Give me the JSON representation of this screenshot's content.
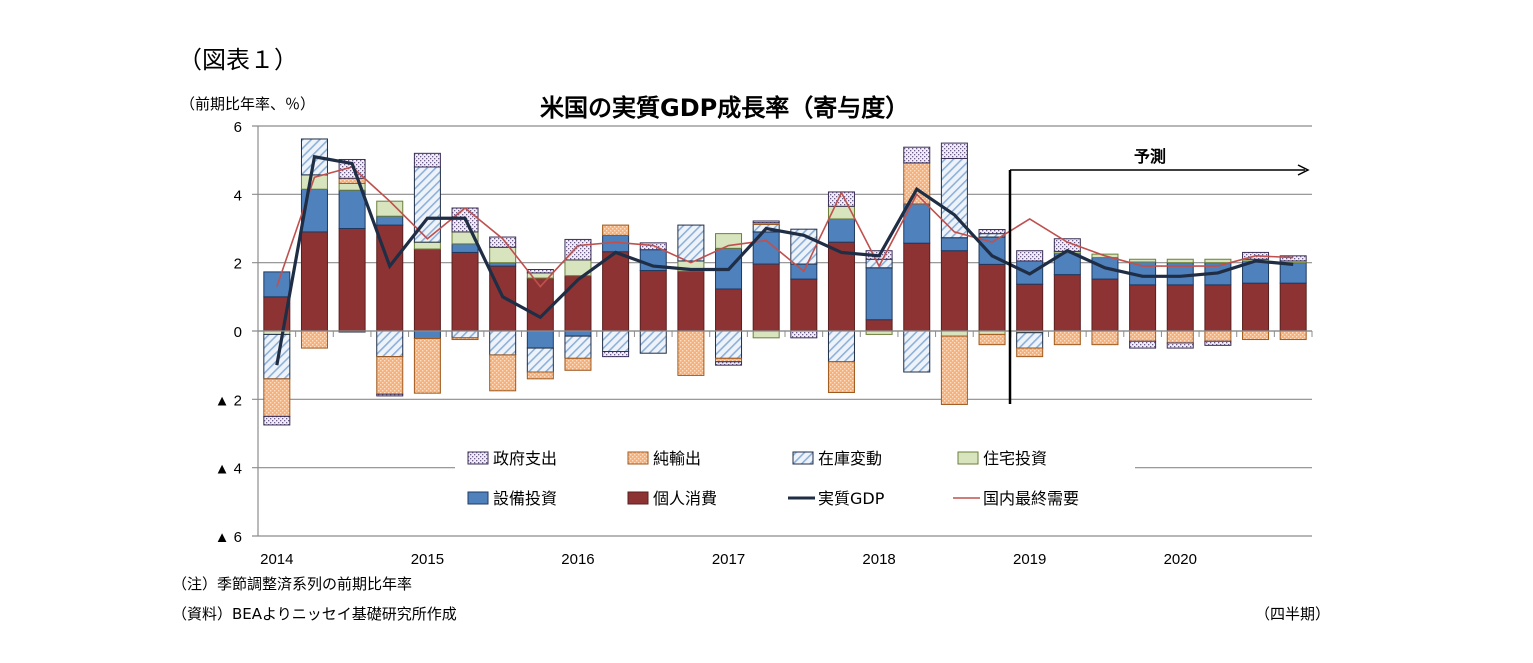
{
  "figure_label": "（図表１）",
  "unit_label": "（前期比年率、％）",
  "note": "（注）季節調整済系列の前期比年率",
  "source": "（資料）BEAよりニッセイ基礎研究所作成",
  "x_unit": "（四半期）",
  "forecast_label": "予測",
  "chart_data": {
    "type": "bar",
    "stacked": true,
    "title": "米国の実質GDP成長率（寄与度）",
    "ylabel": "（前期比年率、％）",
    "xlabel": "（四半期）",
    "ylim": [
      -6,
      6
    ],
    "yticks": [
      6,
      4,
      2,
      0,
      -2,
      -4,
      -6
    ],
    "ytick_labels": [
      "6",
      "4",
      "2",
      "0",
      "▲ 2",
      "▲ 4",
      "▲ 6"
    ],
    "grid": true,
    "legend_position": "bottom-inside",
    "forecast_start_index": 20,
    "categories": [
      "2014Q1",
      "2014Q2",
      "2014Q3",
      "2014Q4",
      "2015Q1",
      "2015Q2",
      "2015Q3",
      "2015Q4",
      "2016Q1",
      "2016Q2",
      "2016Q3",
      "2016Q4",
      "2017Q1",
      "2017Q2",
      "2017Q3",
      "2017Q4",
      "2018Q1",
      "2018Q2",
      "2018Q3",
      "2018Q4",
      "2019Q1",
      "2019Q2",
      "2019Q3",
      "2019Q4",
      "2020Q1",
      "2020Q2",
      "2020Q3",
      "2020Q4"
    ],
    "year_labels": [
      {
        "label": "2014",
        "index": 0
      },
      {
        "label": "2015",
        "index": 4
      },
      {
        "label": "2016",
        "index": 8
      },
      {
        "label": "2017",
        "index": 12
      },
      {
        "label": "2018",
        "index": 16
      },
      {
        "label": "2019",
        "index": 20
      },
      {
        "label": "2020",
        "index": 24
      }
    ],
    "series": [
      {
        "name": "個人消費",
        "key": "pce",
        "kind": "bar",
        "color": "#8E3333",
        "values": [
          1.0,
          2.9,
          3.0,
          3.1,
          2.4,
          2.3,
          1.9,
          1.55,
          1.62,
          2.32,
          1.77,
          1.75,
          1.23,
          1.96,
          1.52,
          2.6,
          0.33,
          2.57,
          2.35,
          1.95,
          1.37,
          1.65,
          1.52,
          1.35,
          1.35,
          1.35,
          1.4,
          1.4
        ]
      },
      {
        "name": "設備投資",
        "key": "nonres",
        "kind": "bar",
        "color": "#4F81BD",
        "values": [
          0.73,
          1.25,
          1.12,
          0.26,
          -0.22,
          0.25,
          0.1,
          -0.5,
          -0.15,
          0.48,
          0.61,
          0.0,
          1.19,
          0.94,
          0.44,
          0.68,
          1.52,
          1.15,
          0.38,
          0.8,
          0.68,
          0.63,
          0.63,
          0.67,
          0.65,
          0.65,
          0.65,
          0.6
        ]
      },
      {
        "name": "住宅投資",
        "key": "resi",
        "kind": "bar",
        "color": "#D7E4BD",
        "values": [
          -0.1,
          0.42,
          0.2,
          0.44,
          0.2,
          0.35,
          0.45,
          0.15,
          0.46,
          0.0,
          0.0,
          0.3,
          0.43,
          -0.2,
          0.0,
          0.37,
          -0.1,
          0.0,
          -0.15,
          -0.1,
          -0.05,
          0.05,
          0.1,
          0.08,
          0.1,
          0.1,
          0.05,
          0.05
        ]
      },
      {
        "name": "在庫変動",
        "key": "inv",
        "kind": "bar",
        "color": "#DCE6F2",
        "values": [
          -1.3,
          1.05,
          -0.03,
          -0.75,
          2.2,
          -0.2,
          -0.7,
          -0.7,
          -0.65,
          -0.6,
          -0.65,
          1.05,
          -0.8,
          0.22,
          1.02,
          -0.9,
          0.25,
          -1.2,
          2.32,
          0.1,
          -0.45,
          0.0,
          0.0,
          0.0,
          0.0,
          0.0,
          0.0,
          0.0
        ]
      },
      {
        "name": "純輸出",
        "key": "nx",
        "kind": "bar",
        "color": "#FAC090",
        "values": [
          -1.1,
          -0.5,
          0.15,
          -1.1,
          -1.6,
          -0.05,
          -1.05,
          -0.2,
          -0.35,
          0.3,
          0.0,
          -1.3,
          -0.1,
          0.05,
          0.0,
          -0.9,
          0.0,
          1.2,
          -2.0,
          -0.3,
          -0.25,
          -0.4,
          -0.4,
          -0.3,
          -0.35,
          -0.3,
          -0.25,
          -0.25
        ]
      },
      {
        "name": "政府支出",
        "key": "gov",
        "kind": "bar",
        "color": "#E6E0EC",
        "values": [
          -0.25,
          0.0,
          0.55,
          -0.05,
          0.4,
          0.7,
          0.3,
          0.1,
          0.6,
          -0.15,
          0.2,
          0.0,
          -0.1,
          0.05,
          -0.2,
          0.42,
          0.25,
          0.46,
          0.45,
          0.12,
          0.3,
          0.37,
          0.0,
          -0.2,
          -0.15,
          -0.12,
          0.2,
          0.15
        ]
      },
      {
        "name": "実質GDP",
        "key": "gdp",
        "kind": "line",
        "color": "#1F2D45",
        "values": [
          -1.0,
          5.1,
          4.9,
          1.9,
          3.3,
          3.3,
          1.0,
          0.4,
          1.5,
          2.3,
          1.9,
          1.8,
          1.8,
          3.0,
          2.8,
          2.3,
          2.2,
          4.15,
          3.4,
          2.2,
          1.67,
          2.35,
          1.85,
          1.6,
          1.6,
          1.7,
          2.05,
          1.95
        ]
      },
      {
        "name": "国内最終需要",
        "key": "dfd",
        "kind": "line",
        "color": "#C0504D",
        "values": [
          1.3,
          4.5,
          4.8,
          3.8,
          2.7,
          3.6,
          2.7,
          1.3,
          2.5,
          2.6,
          2.5,
          2.0,
          2.5,
          2.65,
          1.75,
          4.05,
          1.9,
          4.0,
          2.9,
          2.6,
          3.28,
          2.6,
          2.2,
          1.9,
          1.9,
          1.9,
          2.2,
          2.15
        ]
      }
    ],
    "legend": [
      {
        "name": "政府支出",
        "key": "gov",
        "swatch": "dots"
      },
      {
        "name": "純輸出",
        "key": "nx",
        "swatch": "dense-dots"
      },
      {
        "name": "在庫変動",
        "key": "inv",
        "swatch": "hatch"
      },
      {
        "name": "住宅投資",
        "key": "resi",
        "swatch": "solid"
      },
      {
        "name": "設備投資",
        "key": "nonres",
        "swatch": "solid"
      },
      {
        "name": "個人消費",
        "key": "pce",
        "swatch": "solid"
      },
      {
        "name": "実質GDP",
        "key": "gdp",
        "swatch": "line-thick"
      },
      {
        "name": "国内最終需要",
        "key": "dfd",
        "swatch": "line-thin"
      }
    ]
  }
}
